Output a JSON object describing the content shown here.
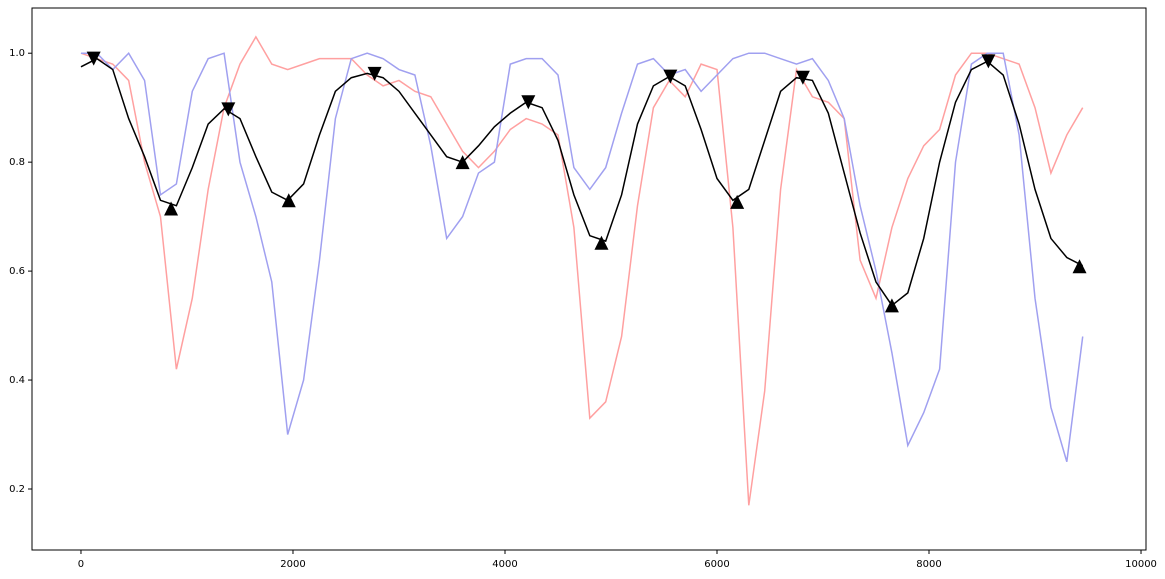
{
  "chart_data": {
    "type": "line",
    "x": [
      0,
      150,
      300,
      450,
      600,
      750,
      900,
      1050,
      1200,
      1350,
      1500,
      1650,
      1800,
      1950,
      2100,
      2250,
      2400,
      2550,
      2700,
      2850,
      3000,
      3150,
      3300,
      3450,
      3600,
      3750,
      3900,
      4050,
      4200,
      4350,
      4500,
      4650,
      4800,
      4950,
      5100,
      5250,
      5400,
      5550,
      5700,
      5850,
      6000,
      6150,
      6300,
      6450,
      6600,
      6750,
      6900,
      7050,
      7200,
      7350,
      7500,
      7650,
      7800,
      7950,
      8100,
      8250,
      8400,
      8550,
      8700,
      8850,
      9000,
      9150,
      9300,
      9450
    ],
    "series": [
      {
        "color": "#ffa0a0",
        "values": [
          1.0,
          0.99,
          0.98,
          0.95,
          0.8,
          0.7,
          0.42,
          0.55,
          0.75,
          0.9,
          0.98,
          1.03,
          0.98,
          0.97,
          0.98,
          0.99,
          0.99,
          0.99,
          0.96,
          0.94,
          0.95,
          0.93,
          0.92,
          0.87,
          0.82,
          0.79,
          0.82,
          0.86,
          0.88,
          0.87,
          0.85,
          0.68,
          0.33,
          0.36,
          0.48,
          0.72,
          0.9,
          0.95,
          0.92,
          0.98,
          0.97,
          0.68,
          0.17,
          0.38,
          0.75,
          0.97,
          0.92,
          0.91,
          0.88,
          0.62,
          0.55,
          0.68,
          0.77,
          0.83,
          0.86,
          0.96,
          1.0,
          1.0,
          0.99,
          0.98,
          0.9,
          0.78,
          0.85,
          0.9
        ]
      },
      {
        "color": "#a0a0f0",
        "values": [
          1.0,
          1.0,
          0.97,
          1.0,
          0.95,
          0.74,
          0.76,
          0.93,
          0.99,
          1.0,
          0.8,
          0.7,
          0.58,
          0.3,
          0.4,
          0.62,
          0.88,
          0.99,
          1.0,
          0.99,
          0.97,
          0.96,
          0.83,
          0.66,
          0.7,
          0.78,
          0.8,
          0.98,
          0.99,
          0.99,
          0.96,
          0.79,
          0.75,
          0.79,
          0.89,
          0.98,
          0.99,
          0.96,
          0.97,
          0.93,
          0.96,
          0.99,
          1.0,
          1.0,
          0.99,
          0.98,
          0.99,
          0.95,
          0.88,
          0.72,
          0.6,
          0.45,
          0.28,
          0.34,
          0.42,
          0.8,
          0.98,
          1.0,
          1.0,
          0.85,
          0.55,
          0.35,
          0.25,
          0.48
        ]
      },
      {
        "color": "#000000",
        "values": [
          0.975,
          0.99,
          0.97,
          0.88,
          0.81,
          0.73,
          0.72,
          0.79,
          0.87,
          0.898,
          0.88,
          0.81,
          0.745,
          0.73,
          0.76,
          0.85,
          0.93,
          0.955,
          0.963,
          0.955,
          0.93,
          0.89,
          0.85,
          0.81,
          0.8,
          0.83,
          0.865,
          0.89,
          0.91,
          0.9,
          0.84,
          0.74,
          0.665,
          0.655,
          0.74,
          0.87,
          0.94,
          0.957,
          0.94,
          0.86,
          0.77,
          0.73,
          0.75,
          0.84,
          0.93,
          0.955,
          0.95,
          0.89,
          0.78,
          0.67,
          0.58,
          0.537,
          0.56,
          0.66,
          0.8,
          0.91,
          0.97,
          0.985,
          0.96,
          0.87,
          0.75,
          0.66,
          0.625,
          0.61
        ]
      }
    ],
    "marker_series": [
      {
        "marker": "triangle-down",
        "color": "#000000",
        "x": [
          120,
          1390,
          2770,
          4220,
          5560,
          6810,
          8560
        ],
        "values": [
          0.99,
          0.897,
          0.962,
          0.91,
          0.957,
          0.955,
          0.985
        ]
      },
      {
        "marker": "triangle-up",
        "color": "#000000",
        "x": [
          850,
          1960,
          3600,
          4910,
          6190,
          7650,
          9420
        ],
        "values": [
          0.715,
          0.73,
          0.8,
          0.652,
          0.727,
          0.537,
          0.609
        ]
      }
    ],
    "xlim": [
      -462,
      10047
    ],
    "ylim": [
      0.088,
      1.083
    ],
    "xticks": [
      0,
      2000,
      4000,
      6000,
      8000,
      10000
    ],
    "yticks": [
      0.2,
      0.4,
      0.6,
      0.8,
      {
        "value": 1,
        "label": "1.0"
      }
    ]
  }
}
